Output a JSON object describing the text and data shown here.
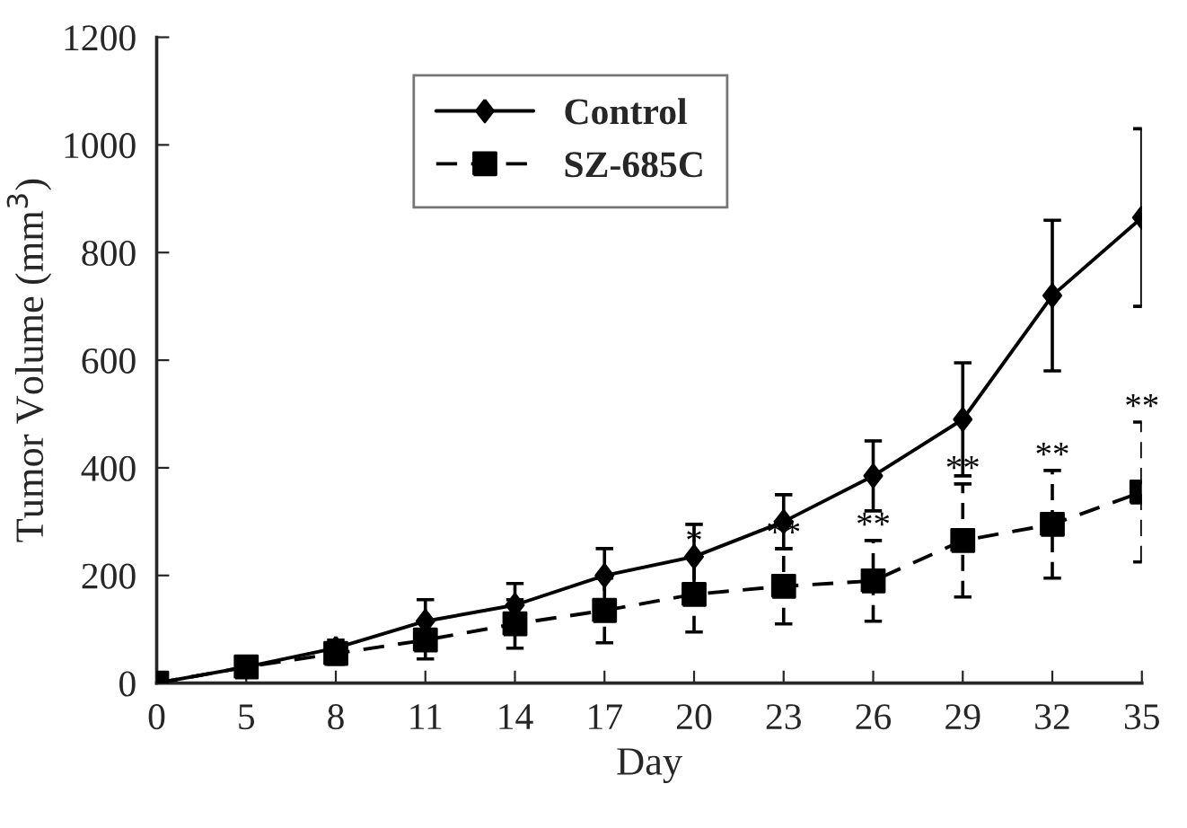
{
  "chart_data": {
    "type": "line",
    "xlabel": "Day",
    "ylabel": "Tumor Volume (mm$^{3}$)",
    "categories": [
      "0",
      "5",
      "8",
      "11",
      "14",
      "17",
      "20",
      "23",
      "26",
      "29",
      "32",
      "35"
    ],
    "series": [
      {
        "name": "Control",
        "color": "#000000",
        "marker": "diamond",
        "line_style": "solid",
        "values": [
          0,
          30,
          65,
          115,
          145,
          200,
          235,
          300,
          385,
          490,
          720,
          865
        ],
        "errors": [
          null,
          null,
          15,
          40,
          40,
          50,
          60,
          50,
          65,
          105,
          140,
          165
        ]
      },
      {
        "name": "SZ-685C",
        "color": "#000000",
        "marker": "square",
        "line_style": "dashed",
        "values": [
          0,
          30,
          55,
          80,
          110,
          135,
          165,
          180,
          190,
          265,
          295,
          355
        ],
        "errors": [
          null,
          null,
          20,
          35,
          45,
          60,
          70,
          70,
          75,
          105,
          100,
          130
        ]
      }
    ],
    "ylim": [
      0,
      1200
    ],
    "yticks": [
      0,
      200,
      400,
      600,
      800,
      1000,
      1200
    ],
    "grid": false,
    "legend": "top",
    "annotations": [
      {
        "text": "*",
        "x": "20",
        "y": 235
      },
      {
        "text": "**",
        "x": "23",
        "y": 250
      },
      {
        "text": "**",
        "x": "26",
        "y": 265
      },
      {
        "text": "**",
        "x": "29",
        "y": 370
      },
      {
        "text": "**",
        "x": "32",
        "y": 395
      },
      {
        "text": "**",
        "x": "35",
        "y": 485
      }
    ]
  }
}
